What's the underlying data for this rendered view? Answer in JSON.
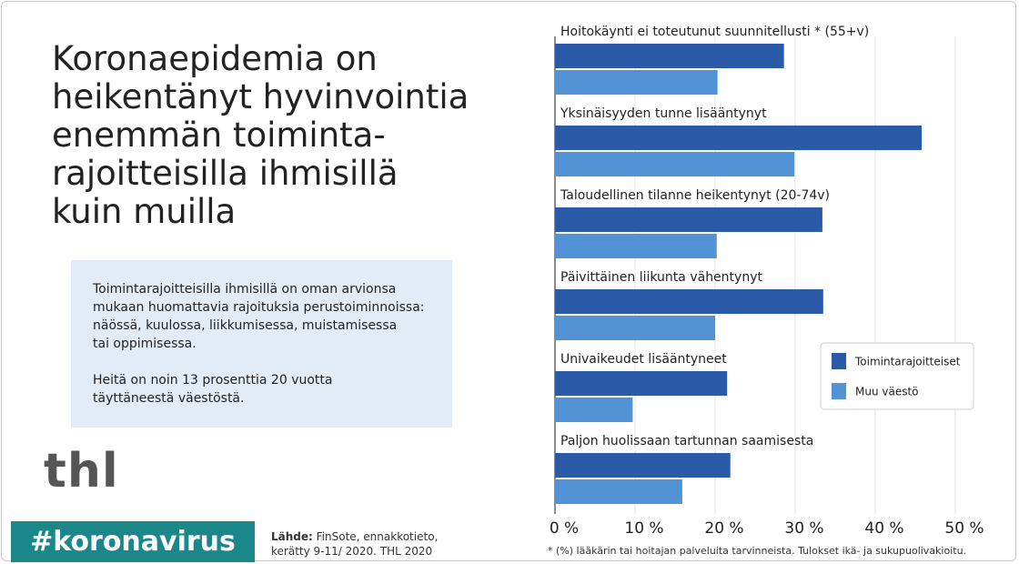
{
  "header": {
    "title_lines": [
      "Koronaepidemia on",
      "heikentänyt hyvinvointia",
      "enemmän toiminta-",
      "rajoitteisilla ihmisillä",
      "kuin muilla"
    ]
  },
  "info": {
    "paragraph1": [
      "Toimintarajoitteisilla ihmisillä on oman arvionsa",
      "mukaan huomattavia rajoituksia perustoiminnoissa:",
      "näössä, kuulossa, liikkumisessa, muistamisessa",
      "tai oppimisessa."
    ],
    "paragraph2": [
      "Heitä on noin 13 prosenttia 20 vuotta",
      "täyttäneestä väestöstä."
    ]
  },
  "logo": "thl",
  "hashtag": "#koronavirus",
  "source": {
    "label": "Lähde:",
    "lines": [
      "FinSote, ennakkotieto,",
      "kerätty 9-11/ 2020. THL 2020"
    ]
  },
  "chart_data": {
    "type": "hbar",
    "categories": [
      "Hoitokäynti ei toteutunut suunnitellusti * (55+v)",
      "Yksinäisyyden tunne lisääntynyt",
      "Taloudellinen tilanne heikentynyt (20-74v)",
      "Päivittäinen liikunta vähentynyt",
      "Univaikeudet lisääntyneet",
      "Paljon huolissaan tartunnan saamisesta"
    ],
    "series": [
      {
        "name": "Toimintarajoitteiset",
        "color": "#2b5aa8",
        "values": [
          28.6,
          45.8,
          33.4,
          33.5,
          21.5,
          21.9
        ]
      },
      {
        "name": "Muu väestö",
        "color": "#5193d5",
        "values": [
          20.3,
          29.9,
          20.2,
          20.0,
          9.7,
          15.9
        ]
      }
    ],
    "xlim": [
      0,
      50
    ],
    "xticks": [
      {
        "value": 0,
        "label": "0 %"
      },
      {
        "value": 10,
        "label": "10 %"
      },
      {
        "value": 20,
        "label": "20 %"
      },
      {
        "value": 30,
        "label": "30 %"
      },
      {
        "value": 40,
        "label": "40 %"
      },
      {
        "value": 50,
        "label": "50 %"
      }
    ],
    "grid": true,
    "footnote": "* (%) lääkärin tai hoitajan palveluita  tarvinneista. Tulokset ikä- ja sukupuolivakioitu."
  }
}
